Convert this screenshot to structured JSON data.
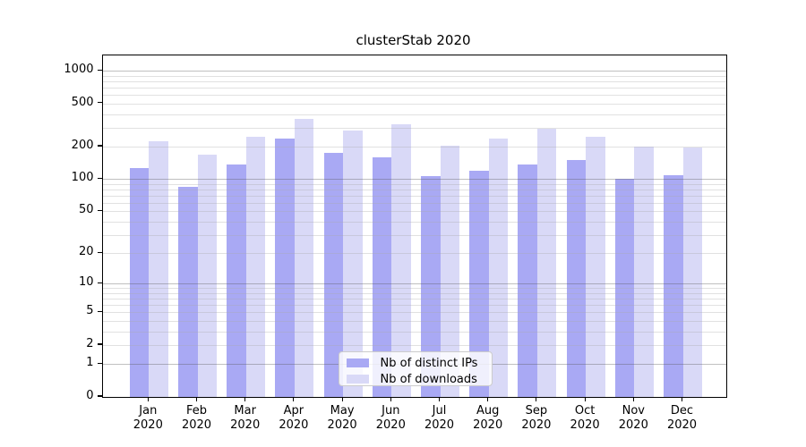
{
  "title": "clusterStab 2020",
  "chart_data": {
    "type": "bar",
    "title": "clusterStab 2020",
    "categories": [
      "Jan 2020",
      "Feb 2020",
      "Mar 2020",
      "Apr 2020",
      "May 2020",
      "Jun 2020",
      "Jul 2020",
      "Aug 2020",
      "Sep 2020",
      "Oct 2020",
      "Nov 2020",
      "Dec 2020"
    ],
    "months": [
      "Jan",
      "Feb",
      "Mar",
      "Apr",
      "May",
      "Jun",
      "Jul",
      "Aug",
      "Sep",
      "Oct",
      "Nov",
      "Dec"
    ],
    "year_label": "2020",
    "series": [
      {
        "name": "Nb of distinct IPs",
        "color": "#a9a9f4",
        "values": [
          127,
          85,
          136,
          237,
          174,
          160,
          107,
          120,
          138,
          150,
          100,
          109
        ]
      },
      {
        "name": "Nb of downloads",
        "color": "#d9d9f7",
        "values": [
          226,
          170,
          248,
          363,
          283,
          320,
          205,
          236,
          291,
          248,
          199,
          195
        ]
      }
    ],
    "y_ticks": [
      0,
      1,
      2,
      5,
      10,
      20,
      50,
      100,
      200,
      500,
      1000
    ],
    "y_scale": "log1p",
    "ylim": [
      0,
      1388
    ],
    "xlabel": "",
    "ylabel": "",
    "grid": true,
    "legend_position": "lower-center"
  }
}
